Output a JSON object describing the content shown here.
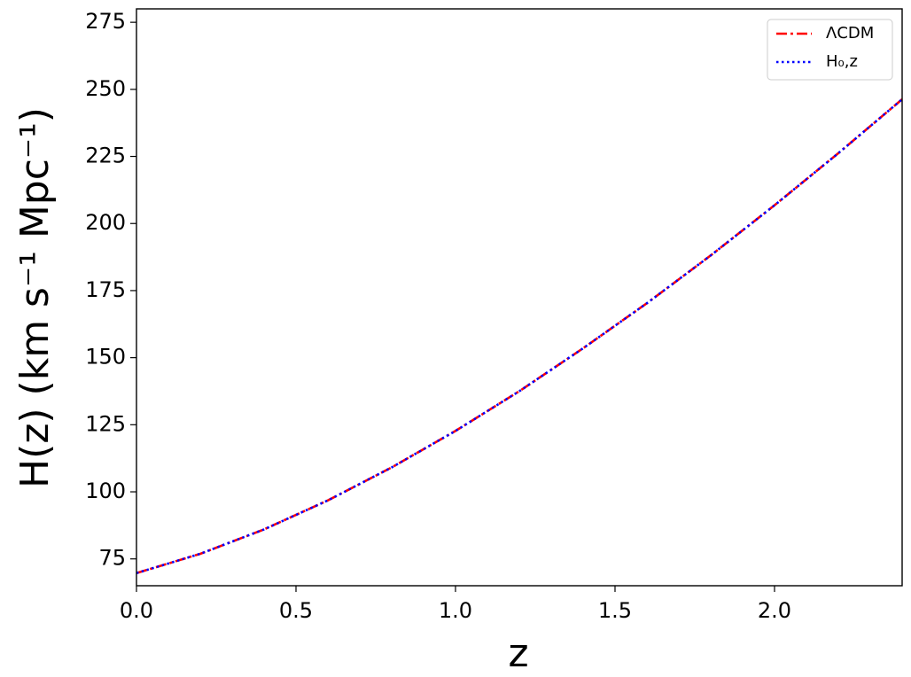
{
  "chart_data": {
    "type": "line",
    "x_label": "z",
    "y_label": "H(z) (km s⁻¹ Mpc⁻¹)",
    "x": [
      0,
      0.2,
      0.4,
      0.6,
      0.8,
      1.0,
      1.2,
      1.4,
      1.6,
      1.8,
      2.0,
      2.2,
      2.4
    ],
    "series": [
      {
        "name": "ΛCDM",
        "color": "#ff0000",
        "style": "dashdot",
        "values": [
          69.7,
          76.9,
          86.0,
          96.8,
          109.1,
          122.7,
          137.5,
          153.5,
          170.3,
          188.1,
          206.8,
          226.2,
          246.3
        ]
      },
      {
        "name": "H₀,z",
        "color": "#0000ff",
        "style": "dotted",
        "values": [
          69.7,
          76.9,
          86.0,
          96.8,
          109.1,
          122.7,
          137.5,
          153.5,
          170.3,
          188.1,
          206.8,
          226.2,
          246.3
        ]
      }
    ],
    "xlim": [
      0,
      2.4
    ],
    "ylim": [
      65,
      280
    ],
    "xticks": [
      {
        "value": 0,
        "label": "0.0"
      },
      0.5,
      {
        "value": 1,
        "label": "1.0"
      },
      1.5,
      {
        "value": 2,
        "label": "2.0"
      }
    ],
    "yticks": [
      75,
      100,
      125,
      150,
      175,
      200,
      225,
      250,
      275
    ],
    "legend": "upper right",
    "grid": false
  }
}
